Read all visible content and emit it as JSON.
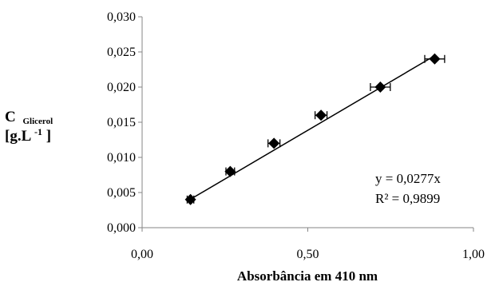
{
  "chart_data": {
    "type": "scatter",
    "title": "",
    "xlabel": "Absorbância em 410 nm",
    "ylabel": {
      "main": "C",
      "sub": "Glicerol",
      "unit_base": "[g.L",
      "unit_exp": "-1",
      "unit_close": "]"
    },
    "xlim": [
      0,
      1
    ],
    "ylim": [
      0,
      0.03
    ],
    "x_ticks": [
      "0,00",
      "0,50",
      "1,00"
    ],
    "y_ticks": [
      "0,000",
      "0,005",
      "0,010",
      "0,015",
      "0,020",
      "0,025",
      "0,030"
    ],
    "grid": false,
    "series": [
      {
        "marker": "diamond",
        "points": [
          {
            "x": 0.146,
            "y": 0.004,
            "xerr": 0.01
          },
          {
            "x": 0.266,
            "y": 0.008,
            "xerr": 0.013
          },
          {
            "x": 0.398,
            "y": 0.012,
            "xerr": 0.018
          },
          {
            "x": 0.54,
            "y": 0.016,
            "xerr": 0.018
          },
          {
            "x": 0.719,
            "y": 0.02,
            "xerr": 0.03
          },
          {
            "x": 0.883,
            "y": 0.024,
            "xerr": 0.03
          }
        ]
      }
    ],
    "trendline": {
      "slope": 0.0277,
      "x_range": [
        0.146,
        0.883
      ]
    },
    "equation": "y = 0,0277x",
    "r_squared": "R² = 0,9899"
  }
}
